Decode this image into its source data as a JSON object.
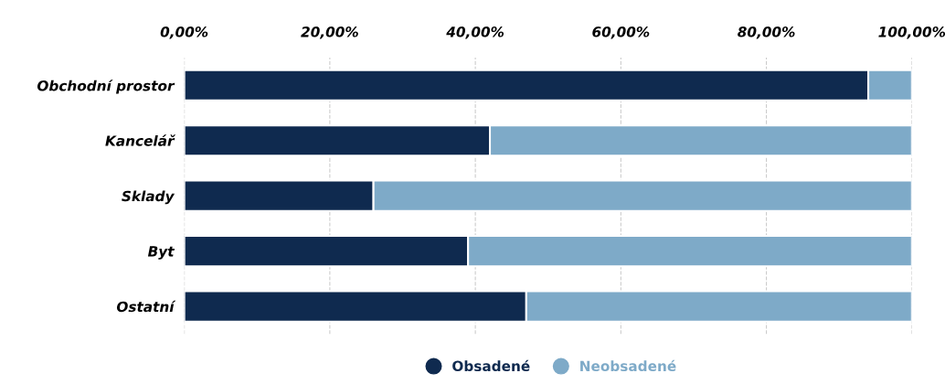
{
  "chart_data": {
    "type": "bar",
    "orientation": "horizontal",
    "stacked": true,
    "categories": [
      "Obchodní prostor",
      "Kancelář",
      "Sklady",
      "Byt",
      "Ostatní"
    ],
    "series": [
      {
        "name": "Obsadené",
        "color": "#0f2a4f",
        "values": [
          94,
          42,
          26,
          39,
          47
        ]
      },
      {
        "name": "Neobsadené",
        "color": "#7eaac8",
        "values": [
          6,
          58,
          74,
          61,
          53
        ]
      }
    ],
    "xlim": [
      0,
      100
    ],
    "xticks": [
      {
        "value": 0,
        "label": "0,00%"
      },
      {
        "value": 20,
        "label": "20,00%"
      },
      {
        "value": 40,
        "label": "40,00%"
      },
      {
        "value": 60,
        "label": "60,00%"
      },
      {
        "value": 80,
        "label": "80,00%"
      },
      {
        "value": 100,
        "label": "100,00%"
      }
    ],
    "grid": "x",
    "legend": "bottom"
  }
}
